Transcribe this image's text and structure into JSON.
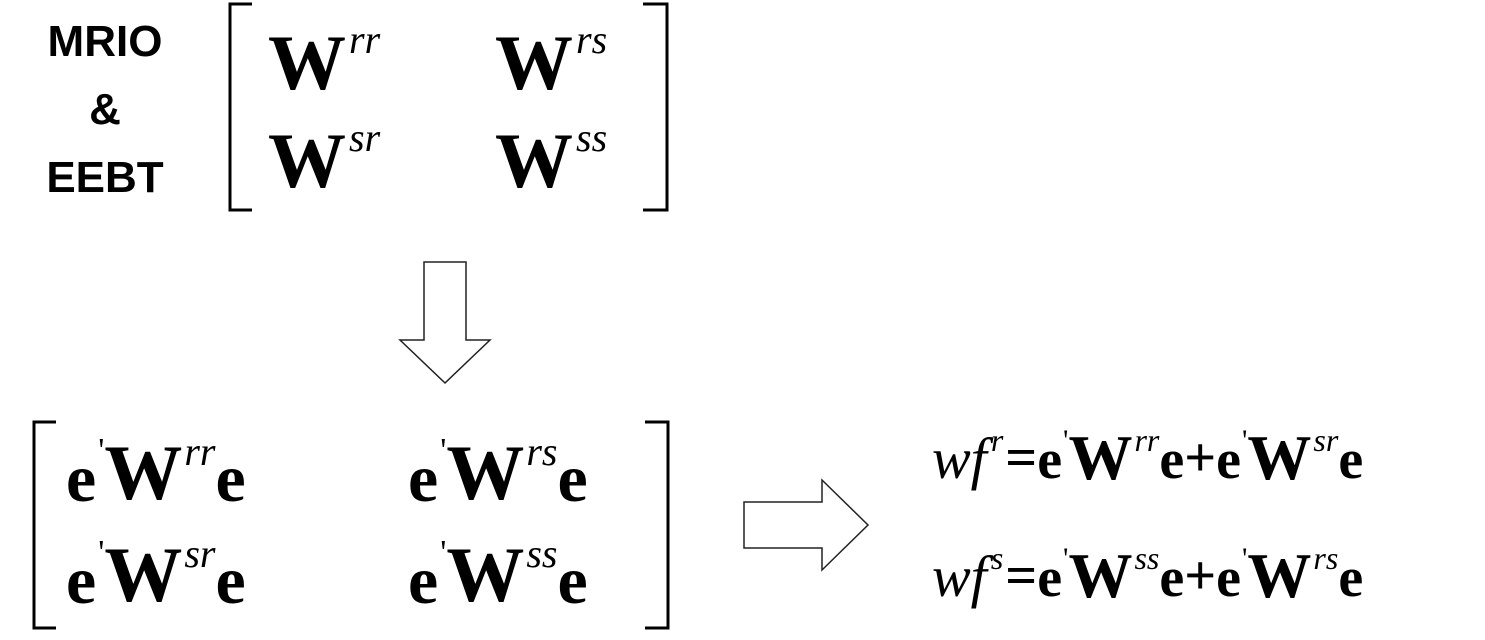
{
  "label": {
    "line1": "MRIO",
    "line2": "&",
    "line3": "EEBT"
  },
  "top_matrix": {
    "W": "W",
    "rr": "rr",
    "rs": "rs",
    "sr": "sr",
    "ss": "ss"
  },
  "bottom_matrix": {
    "e": "e",
    "prime": "'",
    "W": "W",
    "rr": "rr",
    "rs": "rs",
    "sr": "sr",
    "ss": "ss"
  },
  "equations": {
    "var": "wf",
    "r": "r",
    "s": "s",
    "equals": "=",
    "plus": "+",
    "e": "e",
    "prime": "'",
    "W": "W",
    "rr": "rr",
    "sr": "sr",
    "ss": "ss",
    "rs": "rs"
  },
  "arrows": {
    "down": "down-arrow",
    "right": "right-arrow"
  }
}
